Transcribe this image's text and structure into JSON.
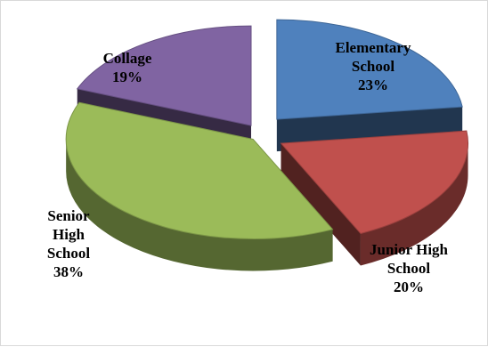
{
  "chart_data": {
    "type": "pie",
    "title": "",
    "categories": [
      "Elementary School",
      "Junior High School",
      "Senior High School",
      "Collage"
    ],
    "values": [
      23,
      20,
      38,
      19
    ],
    "colors": [
      "#4f81bd",
      "#c0504d",
      "#9bbb59",
      "#8064a2"
    ],
    "style": "3d-exploded",
    "labels": [
      {
        "lines": [
          "Elementary",
          "School",
          "23%"
        ]
      },
      {
        "lines": [
          "Junior High",
          "School",
          "20%"
        ]
      },
      {
        "lines": [
          "Senior",
          "High",
          "School",
          "38%"
        ]
      },
      {
        "lines": [
          "Collage",
          "19%"
        ]
      }
    ],
    "legend": "none"
  }
}
